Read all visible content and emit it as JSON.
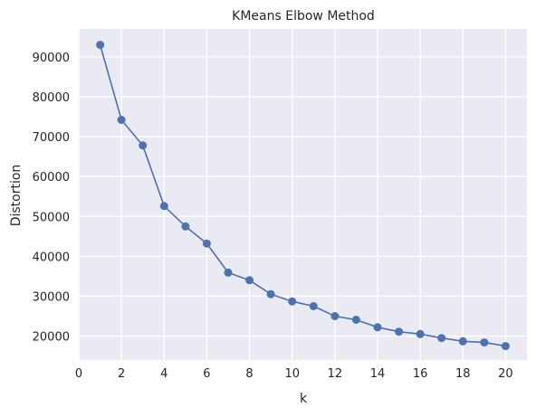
{
  "chart_data": {
    "type": "line",
    "title": "KMeans Elbow Method",
    "xlabel": "k",
    "ylabel": "Distortion",
    "xlim": [
      0,
      21
    ],
    "ylim": [
      14000,
      97000
    ],
    "xticks": [
      0,
      2,
      4,
      6,
      8,
      10,
      12,
      14,
      16,
      18,
      20
    ],
    "yticks": [
      20000,
      30000,
      40000,
      50000,
      60000,
      70000,
      80000,
      90000
    ],
    "grid": true,
    "series": [
      {
        "marker": "circle",
        "color": "#4c72b0",
        "x": [
          1,
          2,
          3,
          4,
          5,
          6,
          7,
          8,
          9,
          10,
          11,
          12,
          13,
          14,
          15,
          16,
          17,
          18,
          19,
          20
        ],
        "y": [
          93000,
          74200,
          67800,
          52600,
          47500,
          43200,
          35900,
          34000,
          30500,
          28700,
          27500,
          25000,
          24100,
          22200,
          21100,
          20500,
          19500,
          18700,
          18400,
          17500
        ]
      }
    ]
  },
  "colors": {
    "plot_background": "#eaeaf2",
    "grid": "#ffffff",
    "line": "#4c72b0",
    "text": "#262626"
  }
}
